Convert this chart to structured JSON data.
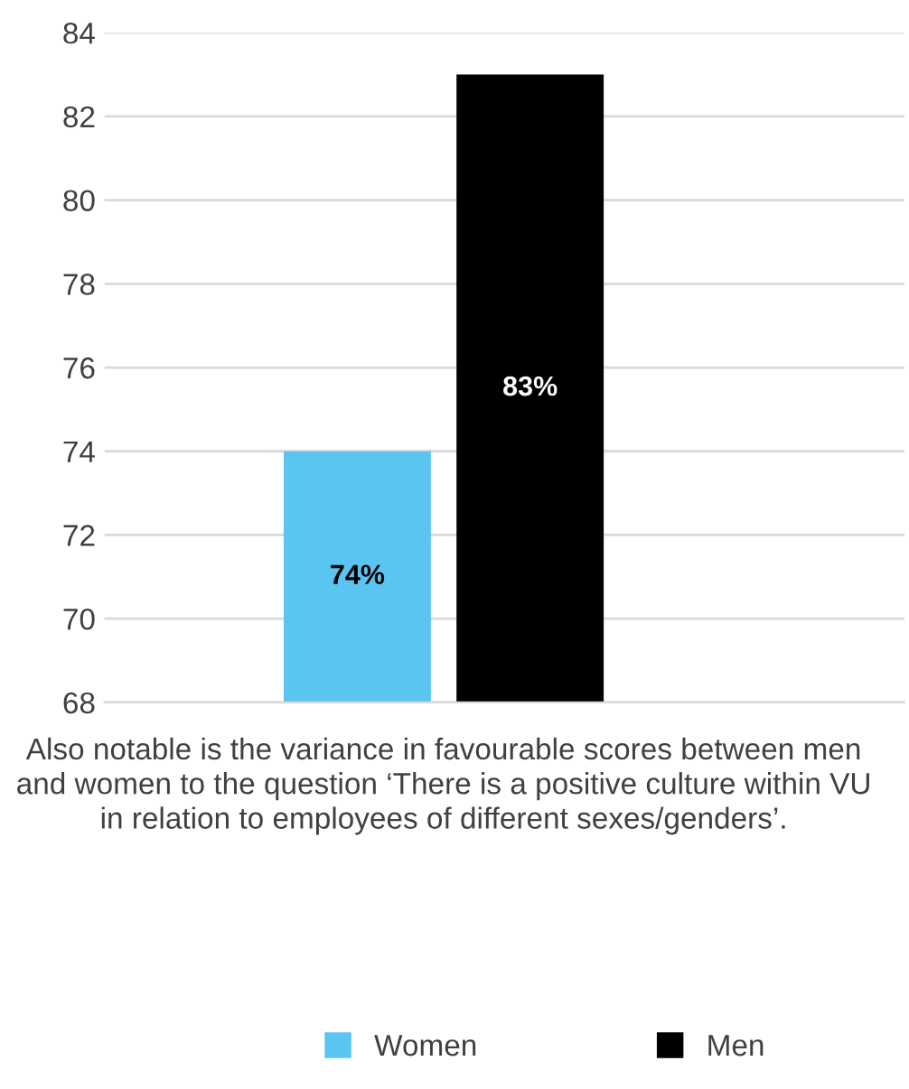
{
  "chart_data": {
    "type": "bar",
    "categories": [
      "Also notable is the variance in favourable scores between men and women to the question ‘There is a positive culture within VU in relation to employees of different sexes/genders’."
    ],
    "series": [
      {
        "name": "Women",
        "color": "#5bc5f2",
        "values": [
          74
        ],
        "value_labels": [
          "74%"
        ]
      },
      {
        "name": "Men",
        "color": "#000000",
        "values": [
          83
        ],
        "value_labels": [
          "83%"
        ]
      }
    ],
    "ylim": [
      68,
      84
    ],
    "yticks": [
      68,
      70,
      72,
      74,
      76,
      78,
      80,
      82,
      84
    ],
    "grid": "y",
    "legend": "bottom"
  }
}
